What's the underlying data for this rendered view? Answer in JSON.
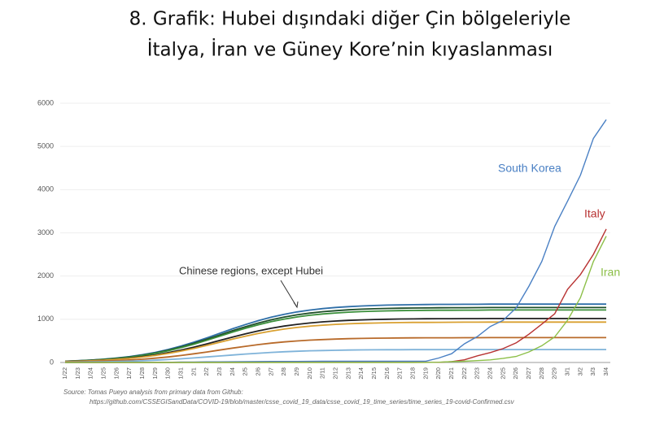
{
  "chart_data": {
    "type": "line",
    "title": [
      "8. Grafik: Hubei dışındaki diğer Çin bölgeleriyle",
      "İtalya, İran ve Güney Kore’nin kıyaslanması"
    ],
    "annotation": "Chinese regions, except Hubei",
    "source": [
      "Source: Tomas Pueyo analysis from primary data from Github:",
      "https://github.com/CSSEGISandData/COVID-19/blob/master/csse_covid_19_data/csse_covid_19_time_series/time_series_19-covid-Confirmed.csv"
    ],
    "categories": [
      "1/22",
      "1/23",
      "1/24",
      "1/25",
      "1/26",
      "1/27",
      "1/28",
      "1/29",
      "1/30",
      "1/31",
      "2/1",
      "2/2",
      "2/3",
      "2/4",
      "2/5",
      "2/6",
      "2/7",
      "2/8",
      "2/9",
      "2/10",
      "2/11",
      "2/12",
      "2/13",
      "2/14",
      "2/15",
      "2/16",
      "2/17",
      "2/18",
      "2/19",
      "2/20",
      "2/21",
      "2/22",
      "2/23",
      "2/24",
      "2/25",
      "2/26",
      "2/27",
      "2/28",
      "2/29",
      "3/1",
      "3/2",
      "3/3",
      "3/4"
    ],
    "ylim": [
      0,
      6000
    ],
    "yticks": [
      0,
      1000,
      2000,
      3000,
      4000,
      5000,
      6000
    ],
    "grid": true,
    "series": [
      {
        "color": "#2f6fa8",
        "values": [
          31,
          42,
          57,
          77,
          103,
          136,
          180,
          234,
          301,
          381,
          471,
          570,
          675,
          780,
          879,
          969,
          1049,
          1116,
          1170,
          1214,
          1247,
          1273,
          1293,
          1308,
          1319,
          1327,
          1334,
          1338,
          1341,
          1344,
          1345,
          1346,
          1347,
          1350,
          1350,
          1350,
          1350,
          1350,
          1350,
          1350,
          1350,
          1350,
          1350
        ]
      },
      {
        "color": "#1f4f2a",
        "values": [
          29,
          39,
          53,
          73,
          97,
          128,
          169,
          220,
          284,
          359,
          444,
          537,
          636,
          735,
          828,
          913,
          988,
          1052,
          1103,
          1144,
          1175,
          1199,
          1218,
          1233,
          1243,
          1250,
          1257,
          1261,
          1263,
          1266,
          1267,
          1268,
          1269,
          1272,
          1272,
          1272,
          1272,
          1272,
          1272,
          1272,
          1272,
          1272,
          1272
        ]
      },
      {
        "color": "#3a8f3a",
        "values": [
          28,
          38,
          51,
          69,
          92,
          123,
          162,
          210,
          271,
          343,
          424,
          513,
          608,
          702,
          791,
          872,
          944,
          1005,
          1053,
          1093,
          1123,
          1146,
          1164,
          1177,
          1187,
          1194,
          1200,
          1204,
          1207,
          1209,
          1210,
          1211,
          1212,
          1215,
          1215,
          1215,
          1215,
          1215,
          1215,
          1215,
          1215,
          1215,
          1215
        ]
      },
      {
        "color": "#222222",
        "values": [
          23,
          32,
          43,
          58,
          77,
          103,
          135,
          176,
          227,
          287,
          355,
          430,
          509,
          588,
          663,
          731,
          791,
          842,
          883,
          915,
          941,
          960,
          975,
          986,
          995,
          1001,
          1006,
          1009,
          1011,
          1013,
          1014,
          1015,
          1016,
          1018,
          1018,
          1018,
          1018,
          1018,
          1018,
          1018,
          1018,
          1018,
          1018
        ]
      },
      {
        "color": "#d9a030",
        "values": [
          22,
          29,
          39,
          53,
          71,
          94,
          124,
          162,
          209,
          264,
          326,
          395,
          468,
          540,
          609,
          671,
          726,
          773,
          811,
          841,
          864,
          882,
          896,
          906,
          913,
          919,
          924,
          927,
          928,
          930,
          931,
          932,
          933,
          935,
          935,
          935,
          935,
          935,
          935,
          935,
          935,
          935,
          935
        ]
      },
      {
        "color": "#b86a2a",
        "values": [
          13,
          18,
          24,
          33,
          44,
          58,
          76,
          99,
          128,
          162,
          201,
          243,
          288,
          332,
          374,
          413,
          447,
          475,
          498,
          517,
          531,
          542,
          551,
          557,
          562,
          565,
          568,
          570,
          571,
          572,
          572,
          573,
          574,
          575,
          575,
          575,
          575,
          575,
          575,
          575,
          575,
          575,
          575
        ]
      },
      {
        "color": "#7fb3d9",
        "values": [
          7,
          9,
          13,
          17,
          23,
          30,
          40,
          52,
          67,
          85,
          105,
          127,
          150,
          173,
          195,
          215,
          233,
          248,
          260,
          270,
          277,
          283,
          287,
          291,
          293,
          295,
          296,
          297,
          298,
          298,
          299,
          299,
          299,
          300,
          300,
          300,
          300,
          300,
          300,
          300,
          300,
          300,
          300
        ]
      },
      {
        "name": "South Korea",
        "color": "#4a80c4",
        "values": [
          1,
          1,
          2,
          2,
          3,
          4,
          4,
          4,
          4,
          11,
          12,
          15,
          15,
          16,
          19,
          23,
          24,
          24,
          25,
          27,
          28,
          28,
          28,
          28,
          28,
          29,
          30,
          31,
          31,
          104,
          204,
          433,
          602,
          833,
          977,
          1261,
          1766,
          2337,
          3150,
          3736,
          4335,
          5186,
          5621
        ]
      },
      {
        "name": "Italy",
        "color": "#b83232",
        "values": [
          0,
          0,
          0,
          0,
          0,
          0,
          0,
          0,
          0,
          2,
          2,
          2,
          2,
          2,
          2,
          2,
          3,
          3,
          3,
          3,
          3,
          3,
          3,
          3,
          3,
          3,
          3,
          3,
          3,
          3,
          20,
          62,
          155,
          229,
          322,
          453,
          655,
          888,
          1128,
          1694,
          2036,
          2502,
          3089
        ]
      },
      {
        "name": "Iran",
        "color": "#8cbf48",
        "values": [
          0,
          0,
          0,
          0,
          0,
          0,
          0,
          0,
          0,
          0,
          0,
          0,
          0,
          0,
          0,
          0,
          0,
          0,
          0,
          0,
          0,
          0,
          0,
          0,
          0,
          0,
          0,
          0,
          2,
          5,
          18,
          28,
          43,
          61,
          95,
          139,
          245,
          388,
          593,
          978,
          1501,
          2336,
          2922
        ]
      }
    ]
  }
}
